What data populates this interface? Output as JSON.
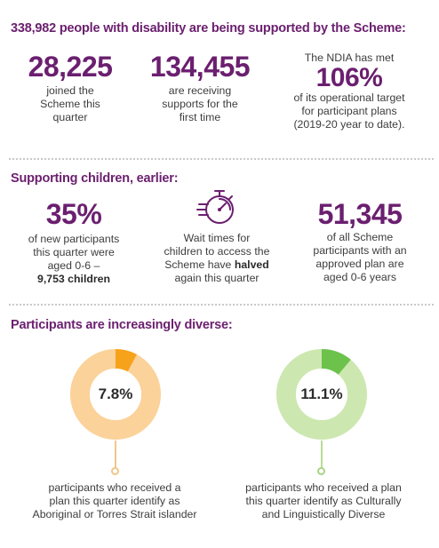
{
  "summary": {
    "count": "338,982",
    "text": " people with disability are being supported by the Scheme:"
  },
  "section1": {
    "stats": [
      {
        "value": "28,225",
        "desc": "joined the\nScheme this\nquarter"
      },
      {
        "value": "134,455",
        "desc": "are receiving\nsupports for the\nfirst time"
      },
      {
        "lead": "The NDIA has met",
        "value": "106%",
        "desc": "of its operational target\nfor participant plans\n(2019-20 year to date)."
      }
    ]
  },
  "section2": {
    "heading": "Supporting children, earlier:",
    "left": {
      "value": "35%",
      "desc": "of new participants\nthis quarter were\naged 0-6 –",
      "bold": "9,753 children"
    },
    "middle": {
      "icon": "stopwatch-icon",
      "line1": "Wait times for\nchildren to access the\nScheme have ",
      "bold": "halved",
      "line2": "\nagain this quarter"
    },
    "right": {
      "value": "51,345",
      "desc": "of all Scheme\nparticipants with an\napproved plan are\naged 0-6 years"
    }
  },
  "section3": {
    "heading": "Participants are increasingly diverse:",
    "rings": [
      {
        "label": "7.8%",
        "fraction": 0.078,
        "ring_color": "#fbd29a",
        "accent_color": "#f7a21b",
        "caption": "participants who received a\nplan this quarter identify as\nAboriginal or Torres Strait islander"
      },
      {
        "label": "11.1%",
        "fraction": 0.111,
        "ring_color": "#cde7b0",
        "accent_color": "#6cc24a",
        "caption": "participants who received a plan\nthis quarter identify as Culturally\nand Linguistically Diverse"
      }
    ]
  },
  "colors": {
    "purple": "#6b1f6f",
    "divider": "#c9c9c9"
  }
}
